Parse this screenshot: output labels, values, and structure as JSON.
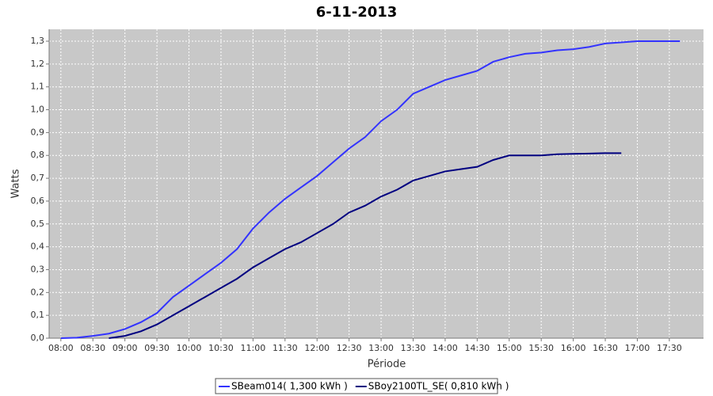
{
  "chart_data": {
    "type": "line",
    "title": "6-11-2013",
    "x_label": "Période",
    "y_label": "Watts",
    "x": [
      "08:00",
      "08:15",
      "08:30",
      "08:45",
      "09:00",
      "09:15",
      "09:30",
      "09:45",
      "10:00",
      "10:15",
      "10:30",
      "10:45",
      "11:00",
      "11:15",
      "11:30",
      "11:45",
      "12:00",
      "12:15",
      "12:30",
      "12:45",
      "13:00",
      "13:15",
      "13:30",
      "13:45",
      "14:00",
      "14:15",
      "14:30",
      "14:45",
      "15:00",
      "15:15",
      "15:30",
      "15:45",
      "16:00",
      "16:15",
      "16:30",
      "16:45",
      "17:00",
      "17:15",
      "17:30",
      "17:40"
    ],
    "series": [
      {
        "name": "SBeam014( 1,300 kWh )",
        "color": "#3333ff",
        "values": [
          0,
          0.002,
          0.01,
          0.02,
          0.04,
          0.07,
          0.11,
          0.18,
          0.23,
          0.28,
          0.33,
          0.39,
          0.48,
          0.55,
          0.61,
          0.66,
          0.71,
          0.77,
          0.83,
          0.88,
          0.95,
          1.0,
          1.07,
          1.1,
          1.13,
          1.15,
          1.17,
          1.21,
          1.23,
          1.245,
          1.25,
          1.26,
          1.265,
          1.275,
          1.29,
          1.295,
          1.3,
          1.3,
          1.3,
          1.3
        ]
      },
      {
        "name": "SBoy2100TL_SE( 0,810 kWh )",
        "color": "#000080",
        "values": [
          null,
          null,
          null,
          0,
          0.01,
          0.03,
          0.06,
          0.1,
          0.14,
          0.18,
          0.22,
          0.26,
          0.31,
          0.35,
          0.39,
          0.42,
          0.46,
          0.5,
          0.55,
          0.58,
          0.62,
          0.65,
          0.69,
          0.71,
          0.73,
          0.74,
          0.75,
          0.78,
          0.8,
          0.8,
          0.8,
          0.805,
          0.807,
          0.808,
          0.81,
          0.81,
          null,
          null,
          null,
          null
        ]
      }
    ],
    "xlim": [
      "07:49",
      "18:02"
    ],
    "xticks": [
      "08:00",
      "08:30",
      "09:00",
      "09:30",
      "10:00",
      "10:30",
      "11:00",
      "11:30",
      "12:00",
      "12:30",
      "13:00",
      "13:30",
      "14:00",
      "14:30",
      "15:00",
      "15:30",
      "16:00",
      "16:30",
      "17:00",
      "17:30"
    ],
    "ylim": [
      0,
      1.352
    ],
    "yticks": [
      {
        "value": 0,
        "label": "0,0"
      },
      {
        "value": 0.1,
        "label": "0,1"
      },
      {
        "value": 0.2,
        "label": "0,2"
      },
      {
        "value": 0.3,
        "label": "0,3"
      },
      {
        "value": 0.4,
        "label": "0,4"
      },
      {
        "value": 0.5,
        "label": "0,5"
      },
      {
        "value": 0.6,
        "label": "0,6"
      },
      {
        "value": 0.7,
        "label": "0,7"
      },
      {
        "value": 0.8,
        "label": "0,8"
      },
      {
        "value": 0.9,
        "label": "0,9"
      },
      {
        "value": 1,
        "label": "1,0"
      },
      {
        "value": 1.1,
        "label": "1,1"
      },
      {
        "value": 1.2,
        "label": "1,2"
      },
      {
        "value": 1.3,
        "label": "1,3"
      }
    ],
    "grid": true,
    "legend": "bottom"
  }
}
